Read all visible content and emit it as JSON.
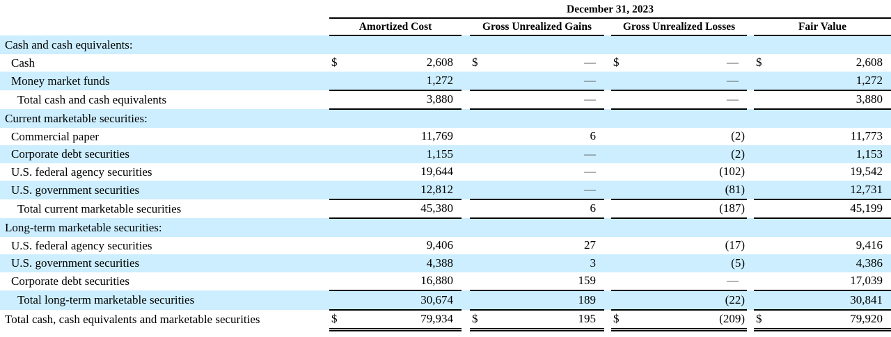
{
  "table": {
    "title": "December 31, 2023",
    "currency_symbol": "$",
    "columns": [
      "Amortized Cost",
      "Gross Unrealized Gains",
      "Gross Unrealized Losses",
      "Fair Value"
    ],
    "rows": [
      {
        "label": "Cash and cash equivalents:",
        "indent": 0,
        "section": true,
        "dollar": false,
        "values": [
          "",
          "",
          "",
          ""
        ]
      },
      {
        "label": "Cash",
        "indent": 1,
        "section": false,
        "dollar": true,
        "values": [
          "2,608",
          "—",
          "—",
          "2,608"
        ]
      },
      {
        "label": "Money market funds",
        "indent": 1,
        "section": false,
        "dollar": false,
        "values": [
          "1,272",
          "—",
          "—",
          "1,272"
        ],
        "border_bottom": "single"
      },
      {
        "label": "Total cash and cash equivalents",
        "indent": 2,
        "section": false,
        "dollar": false,
        "values": [
          "3,880",
          "—",
          "—",
          "3,880"
        ],
        "border_bottom": "single"
      },
      {
        "label": "Current marketable securities:",
        "indent": 0,
        "section": true,
        "dollar": false,
        "values": [
          "",
          "",
          "",
          ""
        ]
      },
      {
        "label": "Commercial paper",
        "indent": 1,
        "section": false,
        "dollar": false,
        "values": [
          "11,769",
          "6",
          "(2)",
          "11,773"
        ]
      },
      {
        "label": "Corporate debt securities",
        "indent": 1,
        "section": false,
        "dollar": false,
        "values": [
          "1,155",
          "—",
          "(2)",
          "1,153"
        ]
      },
      {
        "label": "U.S. federal agency securities",
        "indent": 1,
        "section": false,
        "dollar": false,
        "values": [
          "19,644",
          "—",
          "(102)",
          "19,542"
        ]
      },
      {
        "label": "U.S. government securities",
        "indent": 1,
        "section": false,
        "dollar": false,
        "values": [
          "12,812",
          "—",
          "(81)",
          "12,731"
        ],
        "border_bottom": "single"
      },
      {
        "label": "Total current marketable securities",
        "indent": 2,
        "section": false,
        "dollar": false,
        "values": [
          "45,380",
          "6",
          "(187)",
          "45,199"
        ],
        "border_bottom": "single"
      },
      {
        "label": "Long-term marketable securities:",
        "indent": 0,
        "section": true,
        "dollar": false,
        "values": [
          "",
          "",
          "",
          ""
        ]
      },
      {
        "label": "U.S. federal agency securities",
        "indent": 1,
        "section": false,
        "dollar": false,
        "values": [
          "9,406",
          "27",
          "(17)",
          "9,416"
        ]
      },
      {
        "label": "U.S. government securities",
        "indent": 1,
        "section": false,
        "dollar": false,
        "values": [
          "4,388",
          "3",
          "(5)",
          "4,386"
        ]
      },
      {
        "label": "Corporate debt securities",
        "indent": 1,
        "section": false,
        "dollar": false,
        "values": [
          "16,880",
          "159",
          "—",
          "17,039"
        ],
        "border_bottom": "single"
      },
      {
        "label": "Total long-term marketable securities",
        "indent": 2,
        "section": false,
        "dollar": false,
        "values": [
          "30,674",
          "189",
          "(22)",
          "30,841"
        ],
        "border_bottom": "single"
      },
      {
        "label": "Total cash, cash equivalents and marketable securities",
        "indent": 0,
        "section": false,
        "dollar": true,
        "values": [
          "79,934",
          "195",
          "(209)",
          "79,920"
        ],
        "border_bottom": "double"
      }
    ]
  },
  "colors": {
    "row_highlight": "#cceeff",
    "text": "#000000",
    "border": "#000000",
    "dash": "#595959"
  }
}
